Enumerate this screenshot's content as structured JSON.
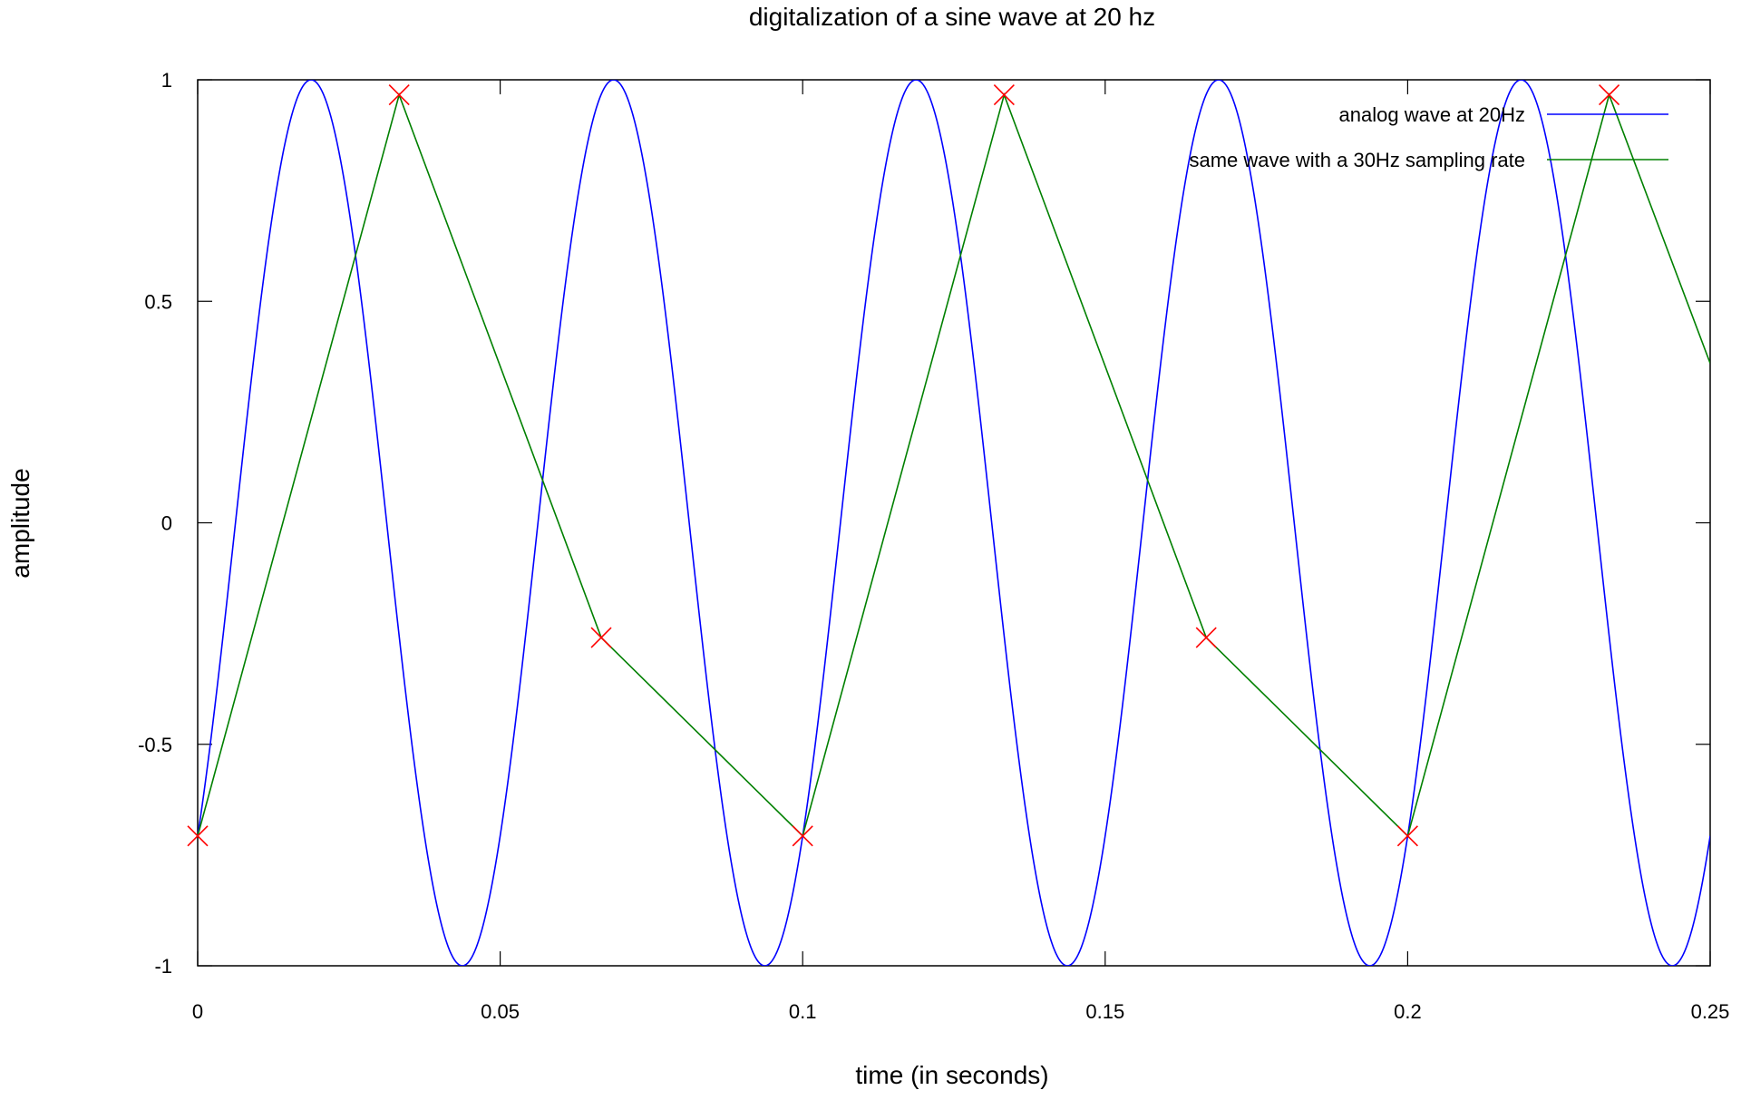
{
  "chart_data": {
    "type": "line",
    "title": "digitalization of a sine wave at 20 hz",
    "xlabel": "time (in seconds)",
    "ylabel": "amplitude",
    "xlim": [
      0,
      0.25
    ],
    "ylim": [
      -1,
      1
    ],
    "xticks": [
      0,
      0.05,
      0.1,
      0.15,
      0.2,
      0.25
    ],
    "xtick_labels": [
      "0",
      "0.05",
      "0.1",
      "0.15",
      "0.2",
      "0.25"
    ],
    "yticks": [
      1,
      0.5,
      0,
      -0.5,
      -1
    ],
    "ytick_labels": [
      "1",
      "0.5",
      "0",
      "-0.5",
      "-1"
    ],
    "grid": false,
    "legend_position": "top-right",
    "series": [
      {
        "name": "analog wave at 20Hz",
        "color": "#0000ff",
        "function": "sin",
        "frequency_hz": 20,
        "phase_rad": -0.785
      },
      {
        "name": "same wave with a 30Hz sampling rate",
        "color": "#008000",
        "marker_color": "#ff0000",
        "marker": "x",
        "x": [
          0,
          0.0333,
          0.0667,
          0.1,
          0.1333,
          0.1667,
          0.2,
          0.2333,
          0.25
        ],
        "y": [
          -0.707,
          0.966,
          -0.259,
          -0.707,
          0.966,
          -0.259,
          -0.707,
          0.966,
          0.36
        ],
        "markers_at": [
          0,
          1,
          2,
          3,
          4,
          5,
          6,
          7
        ]
      }
    ]
  }
}
